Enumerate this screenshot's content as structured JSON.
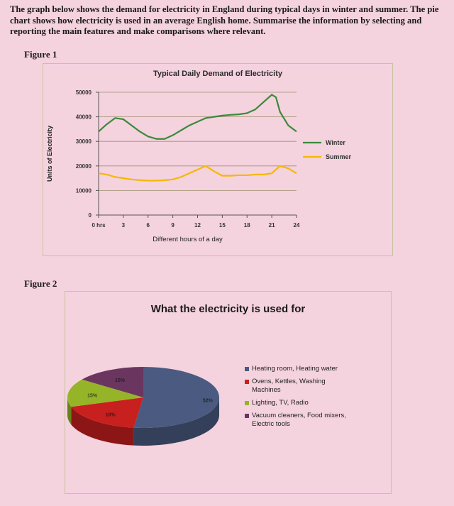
{
  "prompt": "The graph below shows the demand for electricity in England during typical days in winter and summer. The pie chart shows how electricity is used in an average English home. Summarise the information by selecting and reporting the main features and make comparisons where relevant.",
  "figure1_label": "Figure 1",
  "figure2_label": "Figure 2",
  "chart_data": [
    {
      "type": "line",
      "title": "Typical Daily Demand of Electricity",
      "xlabel": "Different hours of a day",
      "ylabel": "Units of Electricity",
      "xlim": [
        0,
        24
      ],
      "ylim": [
        0,
        50000
      ],
      "x_tick_labels": [
        "0 hrs",
        "3",
        "6",
        "9",
        "12",
        "15",
        "18",
        "21",
        "24"
      ],
      "x_ticks": [
        0,
        3,
        6,
        9,
        12,
        15,
        18,
        21,
        24
      ],
      "y_ticks": [
        0,
        10000,
        20000,
        30000,
        40000,
        50000
      ],
      "y_tick_labels": [
        "0",
        "10000",
        "20000",
        "30000",
        "40000",
        "50000"
      ],
      "grid": "horizontal",
      "legend_position": "right",
      "x": [
        0,
        1,
        2,
        3,
        4,
        5,
        6,
        7,
        8,
        9,
        10,
        11,
        12,
        13,
        14,
        15,
        16,
        17,
        18,
        19,
        20,
        21,
        21.5,
        22,
        23,
        24
      ],
      "series": [
        {
          "name": "Winter",
          "color": "#3a8a3a",
          "values": [
            34000,
            37000,
            39500,
            39000,
            36500,
            34000,
            32000,
            31000,
            31000,
            32500,
            34500,
            36500,
            38000,
            39500,
            40000,
            40500,
            40800,
            41000,
            41500,
            43000,
            46000,
            49000,
            48000,
            42000,
            36500,
            34000
          ]
        },
        {
          "name": "Summer",
          "color": "#f5b800",
          "values": [
            17000,
            16500,
            15500,
            15000,
            14500,
            14200,
            14000,
            14000,
            14200,
            14500,
            15500,
            17000,
            18500,
            20000,
            17800,
            16000,
            16000,
            16200,
            16200,
            16500,
            16500,
            17000,
            18500,
            20000,
            19000,
            17000
          ]
        }
      ]
    },
    {
      "type": "pie",
      "title": "What the electricity is used for",
      "slices": [
        {
          "label": "Heating room, Heating water",
          "value": 52,
          "value_label": "52%",
          "color": "#4a5a80"
        },
        {
          "label": "Ovens, Kettles, Washing Machines",
          "value": 18,
          "value_label": "18%",
          "color": "#c8201e"
        },
        {
          "label": "Lighting, TV, Radio",
          "value": 15,
          "value_label": "15%",
          "color": "#96b428"
        },
        {
          "label": "Vacuum cleaners, Food mixers, Electric tools",
          "value": 15,
          "value_label": "15%",
          "color": "#6a3660"
        }
      ],
      "legend_position": "right"
    }
  ]
}
